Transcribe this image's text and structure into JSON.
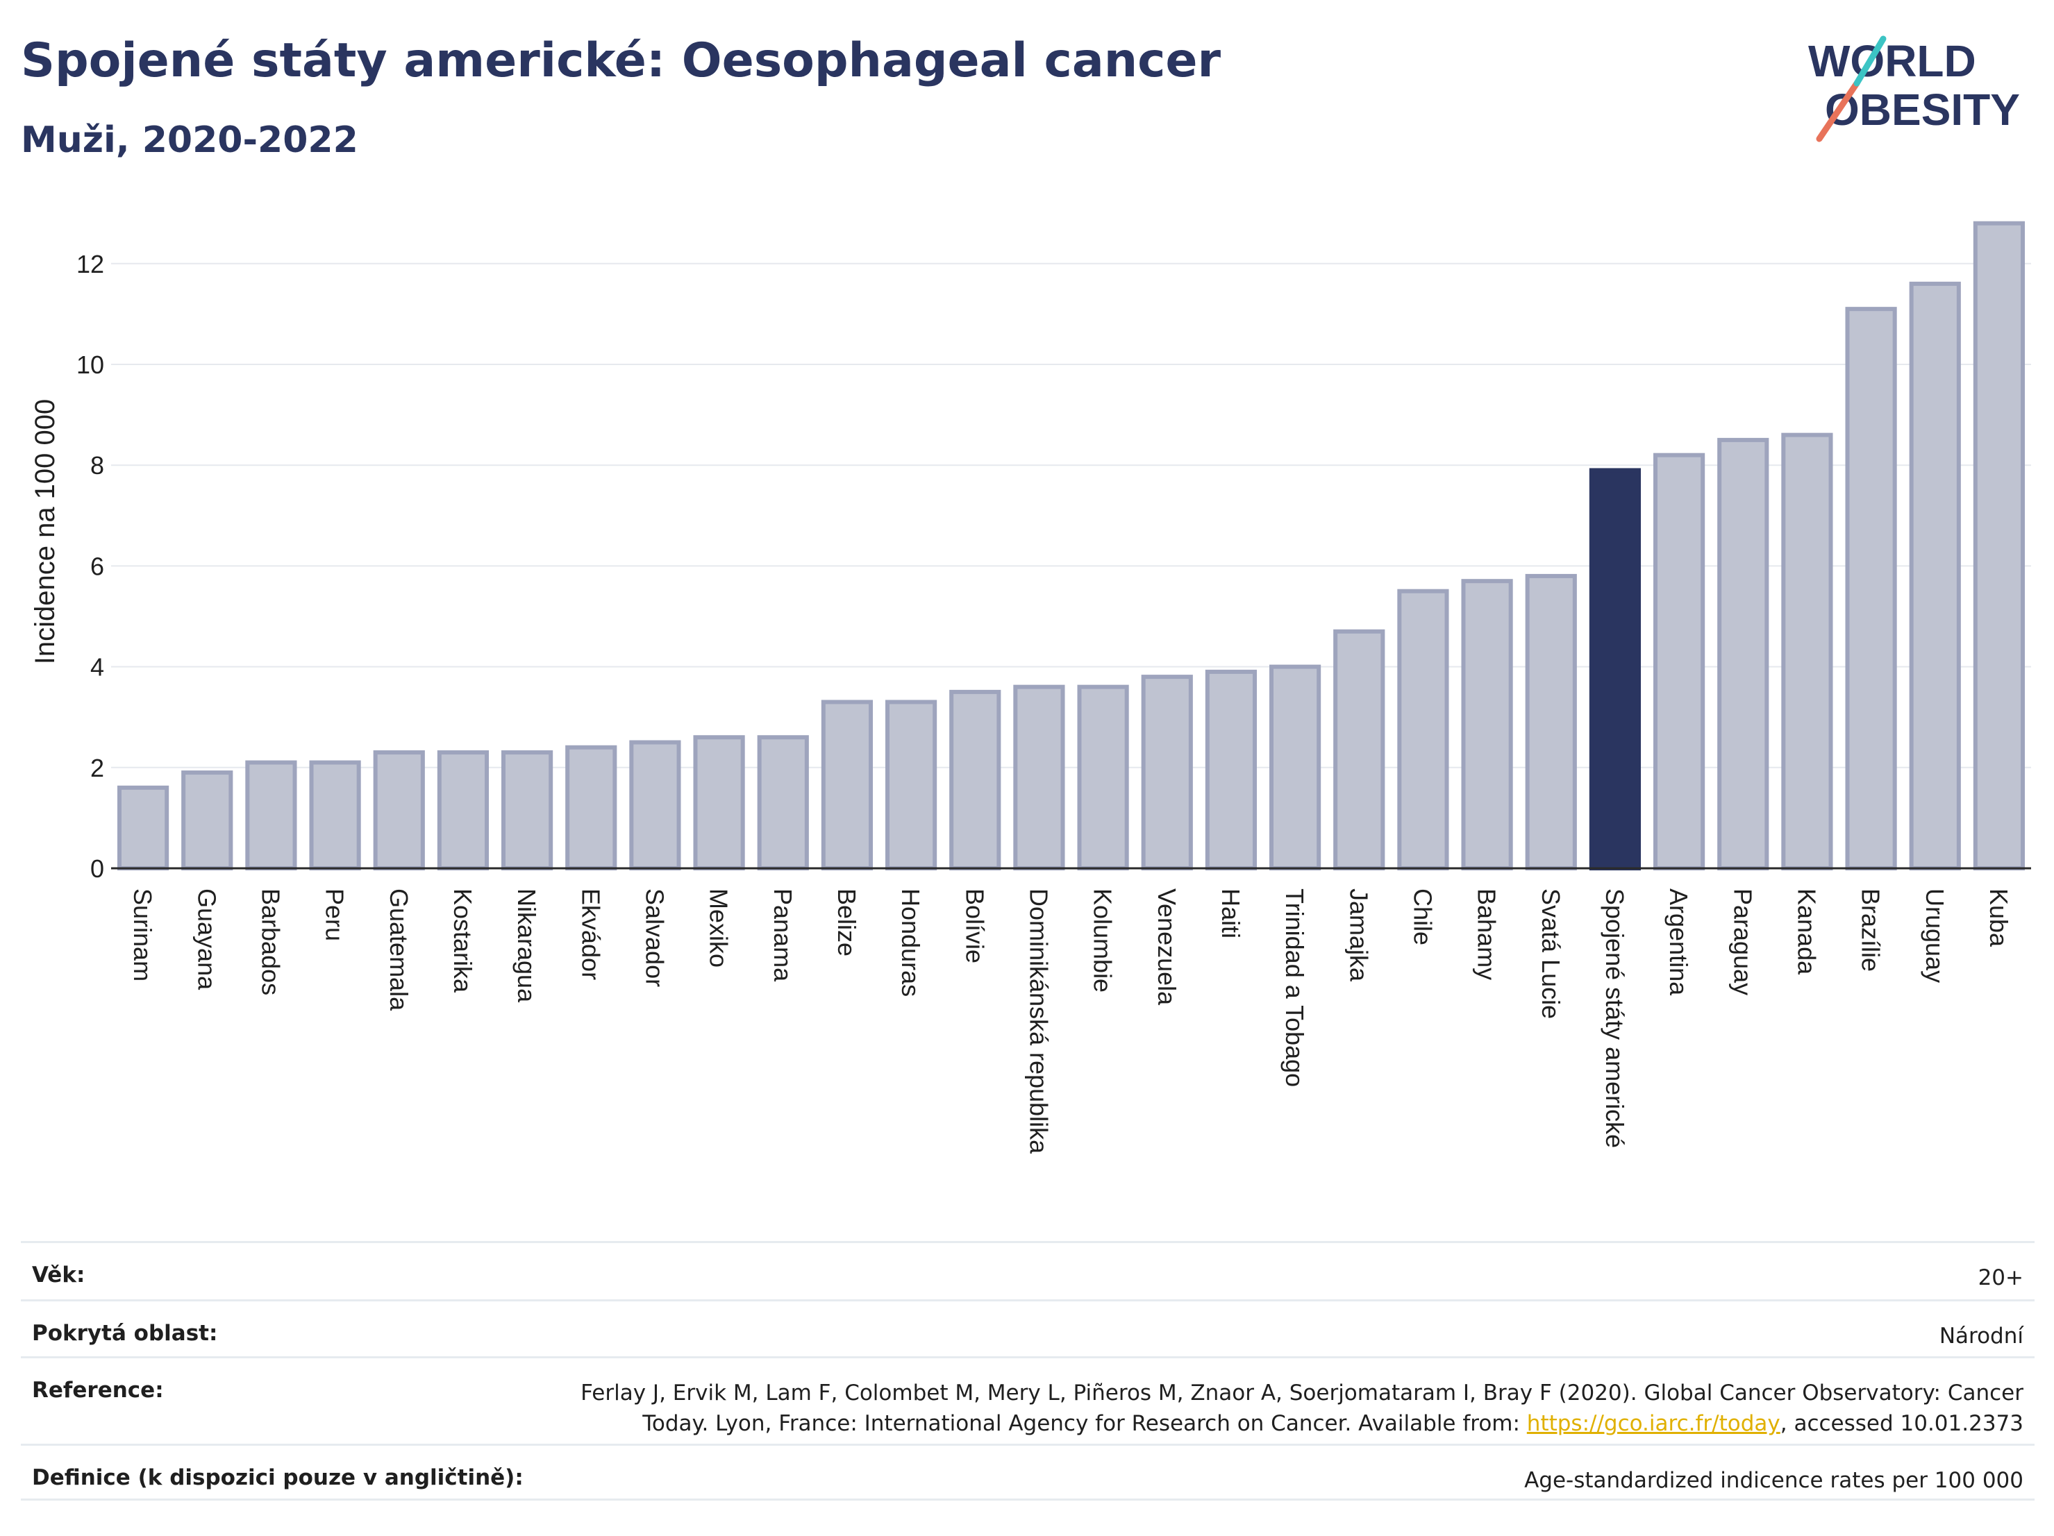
{
  "title": "Spojené státy americké: Oesophageal cancer",
  "subtitle": "Muži, 2020-2022",
  "logo": {
    "line1": "WORLD",
    "line2": "OBESITY"
  },
  "colors": {
    "bar": "#bfc3d1",
    "bar_stroke": "#9ea4bd",
    "highlight": "#2a3560",
    "grid": "#e6e9ee",
    "text": "#2a3560"
  },
  "chart_data": {
    "type": "bar",
    "ylabel": "Incidence na 100 000",
    "ylim": [
      0,
      13
    ],
    "yticks": [
      0,
      2,
      4,
      6,
      8,
      10,
      12
    ],
    "grid": true,
    "highlight": "Spojené státy americké",
    "categories": [
      "Surinam",
      "Guayana",
      "Barbados",
      "Peru",
      "Guatemala",
      "Kostarika",
      "Nikaragua",
      "Ekvádor",
      "Salvador",
      "Mexiko",
      "Panama",
      "Belize",
      "Honduras",
      "Bolívie",
      "Dominikánská republika",
      "Kolumbie",
      "Venezuela",
      "Haiti",
      "Trinidad a Tobago",
      "Jamajka",
      "Chile",
      "Bahamy",
      "Svatá Lucie",
      "Spojené státy americké",
      "Argentina",
      "Paraguay",
      "Kanada",
      "Brazílie",
      "Uruguay",
      "Kuba"
    ],
    "values": [
      1.6,
      1.9,
      2.1,
      2.1,
      2.3,
      2.3,
      2.3,
      2.4,
      2.5,
      2.6,
      2.6,
      3.3,
      3.3,
      3.5,
      3.6,
      3.6,
      3.8,
      3.9,
      4.0,
      4.7,
      5.5,
      5.7,
      5.8,
      7.9,
      8.2,
      8.5,
      8.6,
      11.1,
      11.6,
      12.8
    ]
  },
  "meta": {
    "age_label": "Věk:",
    "age_value": "20+",
    "coverage_label": "Pokrytá oblast:",
    "coverage_value": "Národní",
    "reference_label": "Reference:",
    "reference_line1": "Ferlay J, Ervik M, Lam F, Colombet M, Mery L, Piñeros M, Znaor A, Soerjomataram I, Bray F (2020). Global Cancer Observatory: Cancer",
    "reference_line2_pre": "Today. Lyon, France: International Agency for Research on Cancer. Available from: ",
    "reference_link": "https://gco.iarc.fr/today",
    "reference_line2_post": ", accessed 10.01.2373",
    "definition_label": "Definice (k dispozici pouze v angličtině):",
    "definition_value": "Age-standardized indicence rates per 100 000"
  }
}
